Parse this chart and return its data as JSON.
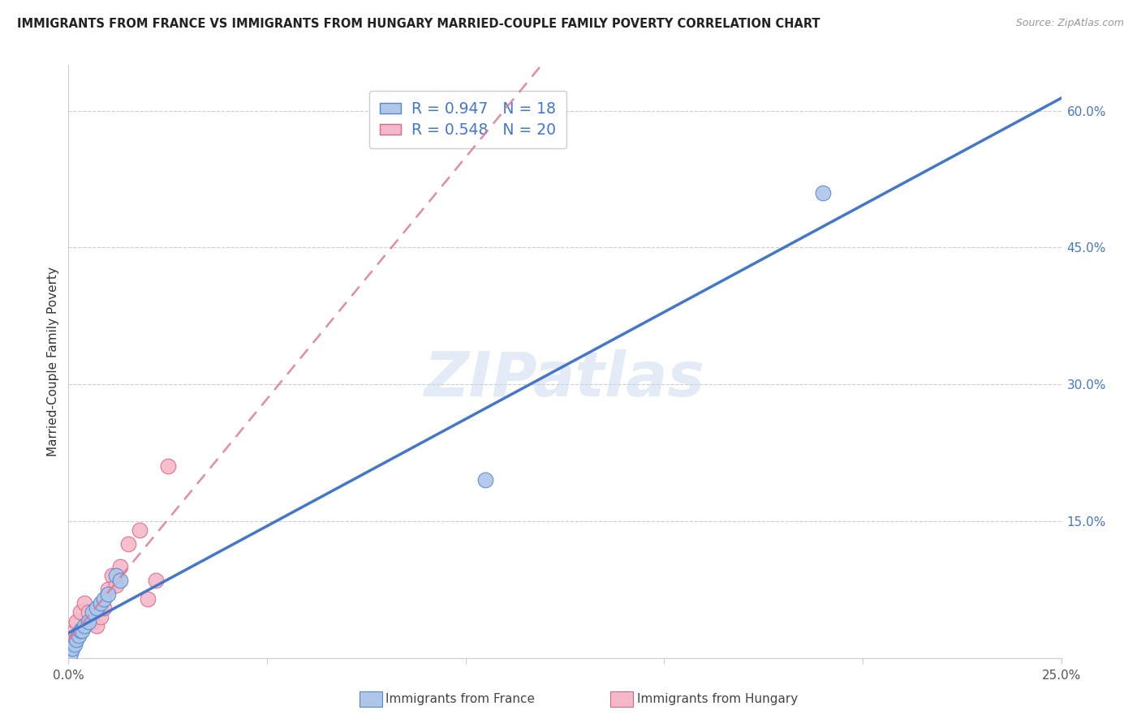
{
  "title": "IMMIGRANTS FROM FRANCE VS IMMIGRANTS FROM HUNGARY MARRIED-COUPLE FAMILY POVERTY CORRELATION CHART",
  "source": "Source: ZipAtlas.com",
  "ylabel": "Married-Couple Family Poverty",
  "france_label": "Immigrants from France",
  "hungary_label": "Immigrants from Hungary",
  "france_R": "0.947",
  "france_N": "18",
  "hungary_R": "0.548",
  "hungary_N": "20",
  "france_color": "#aec6e8",
  "hungary_color": "#f5b8c8",
  "france_edge_color": "#5588cc",
  "hungary_edge_color": "#dd6688",
  "france_line_color": "#4477cc",
  "hungary_line_color": "#dd7799",
  "legend_value_color": "#4477cc",
  "xlim": [
    0.0,
    0.25
  ],
  "ylim": [
    0.0,
    0.65
  ],
  "xticks": [
    0.0,
    0.05,
    0.1,
    0.15,
    0.2,
    0.25
  ],
  "xtick_labels": [
    "0.0%",
    "",
    "",
    "",
    "",
    "25.0%"
  ],
  "ytick_positions": [
    0.0,
    0.15,
    0.3,
    0.45,
    0.6
  ],
  "ytick_labels": [
    "",
    "15.0%",
    "30.0%",
    "45.0%",
    "60.0%"
  ],
  "france_x": [
    0.0005,
    0.001,
    0.0015,
    0.002,
    0.0025,
    0.003,
    0.0035,
    0.004,
    0.005,
    0.006,
    0.007,
    0.008,
    0.009,
    0.01,
    0.012,
    0.013,
    0.105,
    0.19
  ],
  "france_y": [
    0.005,
    0.01,
    0.015,
    0.02,
    0.025,
    0.03,
    0.03,
    0.035,
    0.04,
    0.05,
    0.055,
    0.06,
    0.065,
    0.07,
    0.09,
    0.085,
    0.195,
    0.51
  ],
  "hungary_x": [
    0.0005,
    0.001,
    0.0015,
    0.002,
    0.003,
    0.004,
    0.005,
    0.006,
    0.007,
    0.008,
    0.009,
    0.01,
    0.011,
    0.012,
    0.013,
    0.015,
    0.018,
    0.02,
    0.022,
    0.025
  ],
  "hungary_y": [
    0.01,
    0.02,
    0.03,
    0.04,
    0.05,
    0.06,
    0.05,
    0.04,
    0.035,
    0.045,
    0.055,
    0.075,
    0.09,
    0.08,
    0.1,
    0.125,
    0.14,
    0.065,
    0.085,
    0.21
  ],
  "watermark_text": "ZIPatlas",
  "background_color": "#ffffff",
  "grid_color": "#cccccc"
}
